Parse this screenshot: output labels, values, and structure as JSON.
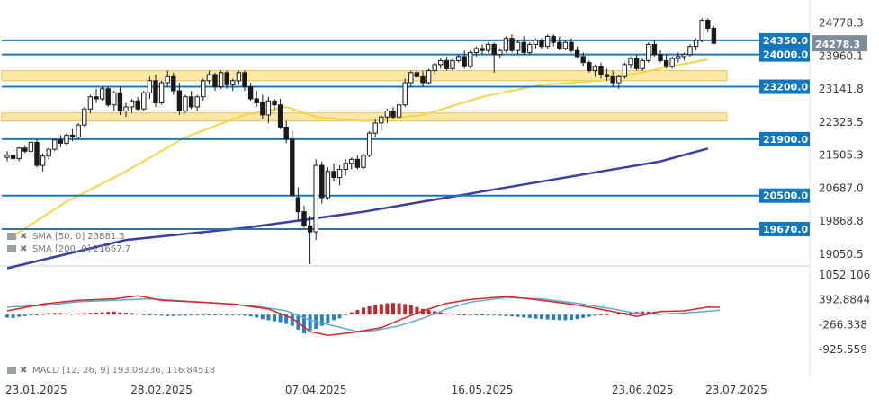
{
  "chart_data": [
    {
      "type": "candlestick",
      "ylim": [
        18800,
        24950
      ],
      "y_ticks": [
        "24778.3",
        "23960.1",
        "23141.8",
        "22323.5",
        "21505.3",
        "20687.0",
        "19868.8",
        "19050.5"
      ],
      "y_tick_values": [
        24778.3,
        23960.1,
        23141.8,
        22323.5,
        21505.3,
        20687.0,
        19868.8,
        19050.5
      ],
      "x_ticks": [
        "23.01.2025",
        "28.02.2025",
        "07.04.2025",
        "16.05.2025",
        "23.06.2025",
        "23.07.2025"
      ],
      "x_tick_index": [
        0,
        26,
        52,
        80,
        107,
        128
      ],
      "last_price": {
        "label": "24278.3",
        "value": 24278.3,
        "color": "#7f8c99"
      },
      "levels": [
        {
          "label": "24350.0",
          "value": 24350
        },
        {
          "label": "24000.0",
          "value": 24000
        },
        {
          "label": "23200.0",
          "value": 23200
        },
        {
          "label": "21900.0",
          "value": 21900
        },
        {
          "label": "20500.0",
          "value": 20500
        },
        {
          "label": "19670.0",
          "value": 19670
        }
      ],
      "zones": [
        {
          "from": 23350,
          "to": 23600
        },
        {
          "from": 22350,
          "to": 22550
        }
      ],
      "candles": [
        [
          21450,
          21600,
          21350,
          21500
        ],
        [
          21500,
          21650,
          21300,
          21420
        ],
        [
          21420,
          21700,
          21350,
          21680
        ],
        [
          21680,
          21750,
          21550,
          21600
        ],
        [
          21600,
          21850,
          21550,
          21820
        ],
        [
          21820,
          21900,
          21200,
          21250
        ],
        [
          21250,
          21550,
          21100,
          21480
        ],
        [
          21480,
          21700,
          21400,
          21650
        ],
        [
          21650,
          21900,
          21600,
          21880
        ],
        [
          21880,
          22000,
          21700,
          21800
        ],
        [
          21800,
          22050,
          21750,
          22000
        ],
        [
          22000,
          22150,
          21850,
          21950
        ],
        [
          21950,
          22300,
          21900,
          22250
        ],
        [
          22250,
          22700,
          22200,
          22650
        ],
        [
          22650,
          23000,
          22550,
          22950
        ],
        [
          22950,
          23150,
          22800,
          22900
        ],
        [
          22900,
          23200,
          22850,
          23150
        ],
        [
          23150,
          23200,
          22700,
          22750
        ],
        [
          22750,
          23100,
          22600,
          23050
        ],
        [
          23050,
          23200,
          22500,
          22600
        ],
        [
          22600,
          22800,
          22450,
          22700
        ],
        [
          22700,
          22900,
          22550,
          22850
        ],
        [
          22850,
          22950,
          22600,
          22650
        ],
        [
          22650,
          23100,
          22600,
          23050
        ],
        [
          23050,
          23450,
          22900,
          23350
        ],
        [
          23350,
          23500,
          22700,
          22800
        ],
        [
          22800,
          23350,
          22750,
          23300
        ],
        [
          23300,
          23600,
          23200,
          23450
        ],
        [
          23450,
          23550,
          23000,
          23100
        ],
        [
          23100,
          23300,
          22500,
          22600
        ],
        [
          22600,
          23000,
          22550,
          22950
        ],
        [
          22950,
          23100,
          22650,
          22700
        ],
        [
          22700,
          23000,
          22600,
          22950
        ],
        [
          22950,
          23400,
          22850,
          23350
        ],
        [
          23350,
          23600,
          23250,
          23500
        ],
        [
          23500,
          23550,
          23100,
          23200
        ],
        [
          23200,
          23600,
          23150,
          23550
        ],
        [
          23550,
          23600,
          23150,
          23250
        ],
        [
          23250,
          23400,
          23100,
          23350
        ],
        [
          23350,
          23600,
          23250,
          23550
        ],
        [
          23550,
          23600,
          23100,
          23200
        ],
        [
          23200,
          23300,
          22850,
          22900
        ],
        [
          22900,
          23100,
          22700,
          22800
        ],
        [
          22800,
          23000,
          22400,
          22500
        ],
        [
          22500,
          22950,
          22300,
          22850
        ],
        [
          22850,
          22900,
          22600,
          22750
        ],
        [
          22750,
          22900,
          22150,
          22200
        ],
        [
          22200,
          22350,
          21800,
          21900
        ],
        [
          21900,
          22100,
          20450,
          20500
        ],
        [
          20450,
          20700,
          19900,
          20100
        ],
        [
          20100,
          20250,
          19700,
          19750
        ],
        [
          19750,
          20000,
          18800,
          19600
        ],
        [
          19600,
          21400,
          19400,
          21250
        ],
        [
          21250,
          21350,
          20300,
          20450
        ],
        [
          20450,
          21200,
          20400,
          21100
        ],
        [
          21100,
          21300,
          20850,
          20950
        ],
        [
          20950,
          21250,
          20750,
          21150
        ],
        [
          21150,
          21400,
          21000,
          21300
        ],
        [
          21300,
          21450,
          21150,
          21400
        ],
        [
          21400,
          21500,
          21150,
          21200
        ],
        [
          21200,
          21550,
          21150,
          21500
        ],
        [
          21500,
          22100,
          21450,
          22050
        ],
        [
          22050,
          22400,
          21950,
          22300
        ],
        [
          22300,
          22500,
          22100,
          22450
        ],
        [
          22450,
          22650,
          22300,
          22600
        ],
        [
          22600,
          22700,
          22400,
          22450
        ],
        [
          22450,
          22800,
          22400,
          22750
        ],
        [
          22750,
          23400,
          22700,
          23300
        ],
        [
          23300,
          23600,
          23200,
          23550
        ],
        [
          23550,
          23700,
          23400,
          23450
        ],
        [
          23450,
          23600,
          23200,
          23300
        ],
        [
          23300,
          23650,
          23250,
          23600
        ],
        [
          23600,
          23800,
          23500,
          23750
        ],
        [
          23750,
          23900,
          23650,
          23850
        ],
        [
          23850,
          23950,
          23600,
          23650
        ],
        [
          23650,
          23900,
          23600,
          23850
        ],
        [
          23850,
          24000,
          23800,
          23950
        ],
        [
          23950,
          24100,
          23650,
          23700
        ],
        [
          23700,
          24100,
          23650,
          24050
        ],
        [
          24050,
          24200,
          23950,
          24150
        ],
        [
          24150,
          24250,
          24000,
          24100
        ],
        [
          24100,
          24300,
          24050,
          24250
        ],
        [
          24250,
          24300,
          23550,
          24000
        ],
        [
          24000,
          24150,
          23900,
          24100
        ],
        [
          24100,
          24450,
          24050,
          24400
        ],
        [
          24400,
          24500,
          24050,
          24100
        ],
        [
          24100,
          24350,
          24000,
          24300
        ],
        [
          24300,
          24450,
          24000,
          24050
        ],
        [
          24050,
          24300,
          24000,
          24250
        ],
        [
          24250,
          24400,
          24150,
          24350
        ],
        [
          24350,
          24400,
          24150,
          24200
        ],
        [
          24200,
          24500,
          24150,
          24450
        ],
        [
          24450,
          24500,
          24200,
          24300
        ],
        [
          24300,
          24450,
          24100,
          24150
        ],
        [
          24150,
          24350,
          24100,
          24300
        ],
        [
          24300,
          24400,
          24050,
          24100
        ],
        [
          24100,
          24200,
          23900,
          23950
        ],
        [
          23950,
          24050,
          23700,
          23800
        ],
        [
          23800,
          23850,
          23550,
          23600
        ],
        [
          23600,
          23750,
          23450,
          23700
        ],
        [
          23700,
          23800,
          23400,
          23500
        ],
        [
          23500,
          23650,
          23350,
          23450
        ],
        [
          23450,
          23600,
          23200,
          23300
        ],
        [
          23300,
          23500,
          23150,
          23450
        ],
        [
          23450,
          23800,
          23400,
          23750
        ],
        [
          23750,
          23950,
          23650,
          23900
        ],
        [
          23900,
          24000,
          23600,
          23650
        ],
        [
          23650,
          23900,
          23600,
          23850
        ],
        [
          23850,
          24300,
          23800,
          24250
        ],
        [
          24250,
          24350,
          23950,
          24000
        ],
        [
          24000,
          24100,
          23800,
          23850
        ],
        [
          23850,
          24000,
          23650,
          23700
        ],
        [
          23700,
          23950,
          23650,
          23900
        ],
        [
          23900,
          24050,
          23800,
          23950
        ],
        [
          23950,
          24050,
          23850,
          24000
        ],
        [
          24000,
          24250,
          23950,
          24200
        ],
        [
          24200,
          24400,
          24100,
          24350
        ],
        [
          24350,
          24900,
          24300,
          24850
        ],
        [
          24850,
          24900,
          24550,
          24650
        ],
        [
          24650,
          24700,
          24250,
          24278.3
        ]
      ],
      "sma50": [
        {
          "i": 0,
          "v": 19400
        },
        {
          "i": 10,
          "v": 20350
        },
        {
          "i": 20,
          "v": 21100
        },
        {
          "i": 30,
          "v": 21950
        },
        {
          "i": 40,
          "v": 22500
        },
        {
          "i": 47,
          "v": 22700
        },
        {
          "i": 52,
          "v": 22450
        },
        {
          "i": 60,
          "v": 22350
        },
        {
          "i": 70,
          "v": 22500
        },
        {
          "i": 80,
          "v": 22950
        },
        {
          "i": 90,
          "v": 23250
        },
        {
          "i": 100,
          "v": 23350
        },
        {
          "i": 110,
          "v": 23650
        },
        {
          "i": 118,
          "v": 23881.3
        }
      ],
      "sma200": [
        {
          "i": 0,
          "v": 18700
        },
        {
          "i": 20,
          "v": 19400
        },
        {
          "i": 40,
          "v": 19700
        },
        {
          "i": 60,
          "v": 20100
        },
        {
          "i": 80,
          "v": 20600
        },
        {
          "i": 100,
          "v": 21100
        },
        {
          "i": 110,
          "v": 21350
        },
        {
          "i": 118,
          "v": 21667.7
        }
      ],
      "legend": [
        {
          "label": "SMA [50, 0] 23881.3",
          "color": "#f5d547"
        },
        {
          "label": "SMA [200, 0] 21667.7",
          "color": "#3b3f9e"
        }
      ],
      "colors": {
        "up": "#ffffff",
        "down": "#1a1a1a",
        "level": "#1f78b4",
        "level_box": "#1178c0",
        "zone_fill": "#fde9a6",
        "zone_border": "#e8c04f",
        "sma50": "#f5d547",
        "sma200": "#3b3f9e"
      }
    },
    {
      "type": "macd",
      "ylim": [
        -1000,
        1150
      ],
      "y_ticks": [
        "1052.106",
        "392.8844",
        "-266.338",
        "-925.559"
      ],
      "y_tick_values": [
        1052.106,
        392.8844,
        -266.338,
        -925.559
      ],
      "legend": "MACD [12, 26, 9] 193.08236, 116.84518",
      "macd_line": [
        {
          "i": 0,
          "v": 100
        },
        {
          "i": 6,
          "v": 280
        },
        {
          "i": 12,
          "v": 380
        },
        {
          "i": 18,
          "v": 420
        },
        {
          "i": 22,
          "v": 500
        },
        {
          "i": 26,
          "v": 380
        },
        {
          "i": 32,
          "v": 330
        },
        {
          "i": 38,
          "v": 280
        },
        {
          "i": 44,
          "v": 150
        },
        {
          "i": 48,
          "v": -100
        },
        {
          "i": 51,
          "v": -450
        },
        {
          "i": 54,
          "v": -550
        },
        {
          "i": 58,
          "v": -480
        },
        {
          "i": 63,
          "v": -350
        },
        {
          "i": 66,
          "v": -150
        },
        {
          "i": 70,
          "v": 100
        },
        {
          "i": 74,
          "v": 300
        },
        {
          "i": 78,
          "v": 400
        },
        {
          "i": 84,
          "v": 480
        },
        {
          "i": 88,
          "v": 420
        },
        {
          "i": 94,
          "v": 300
        },
        {
          "i": 98,
          "v": 200
        },
        {
          "i": 103,
          "v": 50
        },
        {
          "i": 106,
          "v": -50
        },
        {
          "i": 110,
          "v": 80
        },
        {
          "i": 114,
          "v": 100
        },
        {
          "i": 118,
          "v": 200
        },
        {
          "i": 120,
          "v": 193
        }
      ],
      "signal_line": [
        {
          "i": 0,
          "v": 200
        },
        {
          "i": 6,
          "v": 240
        },
        {
          "i": 12,
          "v": 340
        },
        {
          "i": 18,
          "v": 380
        },
        {
          "i": 24,
          "v": 420
        },
        {
          "i": 30,
          "v": 360
        },
        {
          "i": 36,
          "v": 300
        },
        {
          "i": 42,
          "v": 220
        },
        {
          "i": 47,
          "v": 100
        },
        {
          "i": 51,
          "v": -150
        },
        {
          "i": 55,
          "v": -300
        },
        {
          "i": 59,
          "v": -450
        },
        {
          "i": 62,
          "v": -420
        },
        {
          "i": 66,
          "v": -300
        },
        {
          "i": 70,
          "v": -100
        },
        {
          "i": 74,
          "v": 150
        },
        {
          "i": 78,
          "v": 330
        },
        {
          "i": 84,
          "v": 450
        },
        {
          "i": 90,
          "v": 420
        },
        {
          "i": 96,
          "v": 300
        },
        {
          "i": 102,
          "v": 150
        },
        {
          "i": 106,
          "v": 30
        },
        {
          "i": 110,
          "v": 10
        },
        {
          "i": 116,
          "v": 60
        },
        {
          "i": 120,
          "v": 117
        }
      ],
      "histogram": [
        -80,
        -90,
        -60,
        -40,
        -20,
        -10,
        20,
        40,
        40,
        40,
        30,
        20,
        30,
        40,
        45,
        50,
        60,
        70,
        80,
        60,
        50,
        40,
        30,
        10,
        -10,
        -20,
        -30,
        -40,
        -40,
        -30,
        -30,
        -20,
        -20,
        -15,
        -10,
        -10,
        -5,
        -5,
        -10,
        -20,
        -30,
        -50,
        -80,
        -120,
        -150,
        -180,
        -200,
        -250,
        -300,
        -400,
        -500,
        -420,
        -380,
        -300,
        -220,
        -150,
        -100,
        -20,
        60,
        120,
        180,
        220,
        260,
        280,
        300,
        310,
        300,
        280,
        250,
        200,
        150,
        120,
        90,
        60,
        30,
        20,
        10,
        0,
        -10,
        -10,
        -10,
        -10,
        -20,
        -30,
        -40,
        -50,
        -60,
        -80,
        -90,
        -110,
        -120,
        -130,
        -140,
        -150,
        -150,
        -140,
        -120,
        -90,
        -60,
        -30,
        -10,
        10,
        30,
        40,
        50,
        60,
        70,
        80,
        80,
        80
      ],
      "colors": {
        "macd": "#d62728",
        "signal": "#5aa9d6",
        "hist_pos": "#c0272d",
        "hist_neg": "#2b7fc1"
      }
    }
  ]
}
